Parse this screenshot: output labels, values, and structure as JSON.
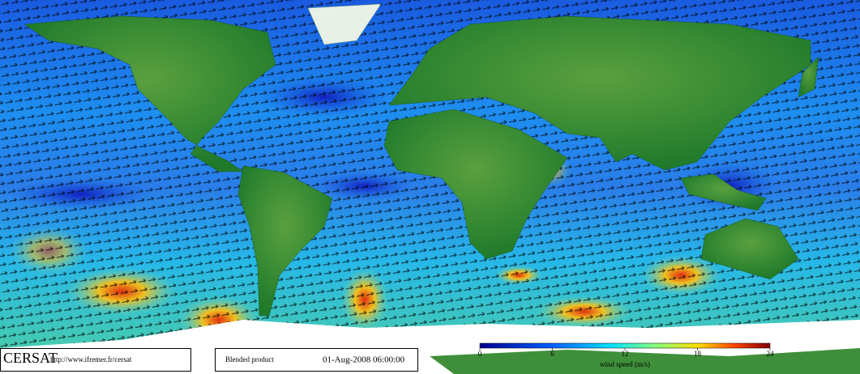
{
  "footer": {
    "logo": "CERSAT",
    "url": "http://www.ifremer.fr/cersat",
    "product": "Blended product",
    "date": "01-Aug-2008 06:00:00"
  },
  "colorbar": {
    "range": [
      0,
      24
    ],
    "ticks": [
      0,
      6,
      12,
      18,
      24
    ],
    "label": "wind speed (m/s)"
  }
}
